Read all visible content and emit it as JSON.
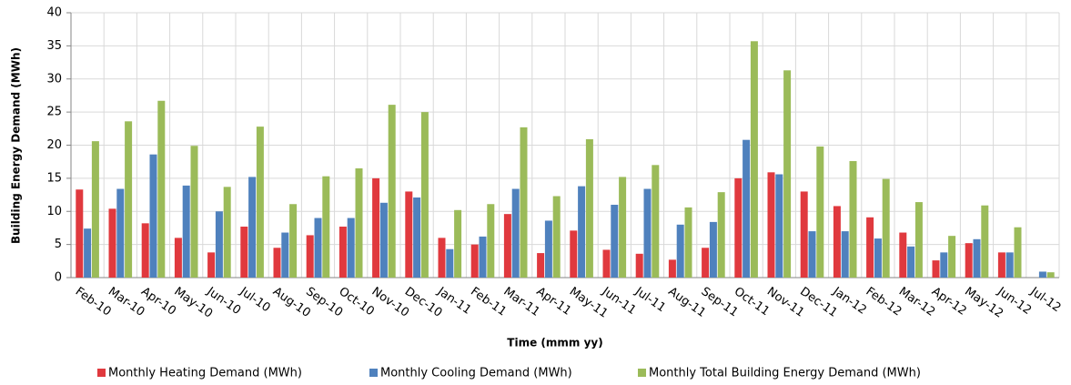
{
  "chart_data": {
    "type": "bar",
    "ylabel": "Building Energy Demand (MWh)",
    "xlabel": "Time (mmm yy)",
    "categories": [
      "Feb-10",
      "Mar-10",
      "Apr-10",
      "May-10",
      "Jun-10",
      "Jul-10",
      "Aug-10",
      "Sep-10",
      "Oct-10",
      "Nov-10",
      "Dec-10",
      "Jan-11",
      "Feb-11",
      "Mar-11",
      "Apr-11",
      "May-11",
      "Jun-11",
      "Jul-11",
      "Aug-11",
      "Sep-11",
      "Oct-11",
      "Nov-11",
      "Dec-11",
      "Jan-12",
      "Feb-12",
      "Mar-12",
      "Apr-12",
      "May-12",
      "Jun-12",
      "Jul-12"
    ],
    "series": [
      {
        "name": "Monthly Heating Demand (MWh)",
        "color": "#e0393e",
        "values": [
          13.3,
          10.4,
          8.2,
          6.0,
          3.8,
          7.7,
          4.5,
          6.4,
          7.7,
          15.0,
          13.0,
          6.0,
          5.0,
          9.6,
          3.7,
          7.1,
          4.2,
          3.6,
          2.7,
          4.5,
          15.0,
          15.9,
          13.0,
          10.8,
          9.1,
          6.8,
          2.6,
          5.2,
          3.8,
          0
        ]
      },
      {
        "name": "Monthly Cooling Demand (MWh)",
        "color": "#4f81bd",
        "values": [
          7.4,
          13.4,
          18.6,
          13.9,
          10.0,
          15.2,
          6.8,
          9.0,
          9.0,
          11.3,
          12.1,
          4.3,
          6.2,
          13.4,
          8.6,
          13.8,
          11.0,
          13.4,
          8.0,
          8.4,
          20.8,
          15.6,
          7.0,
          7.0,
          5.9,
          4.7,
          3.8,
          5.8,
          3.8,
          0.9
        ]
      },
      {
        "name": "Monthly Total Building Energy Demand (MWh)",
        "color": "#9bbb59",
        "values": [
          20.6,
          23.6,
          26.7,
          19.9,
          13.7,
          22.8,
          11.1,
          15.3,
          16.5,
          26.1,
          25.0,
          10.2,
          11.1,
          22.7,
          12.3,
          20.9,
          15.2,
          17.0,
          10.6,
          12.9,
          35.7,
          31.3,
          19.8,
          17.6,
          14.9,
          11.4,
          6.3,
          10.9,
          7.6,
          0.8
        ]
      }
    ],
    "ylim": [
      0,
      40
    ],
    "yticks": [
      0,
      5,
      10,
      15,
      20,
      25,
      30,
      35,
      40
    ],
    "grid": true,
    "legend": "bottom"
  }
}
